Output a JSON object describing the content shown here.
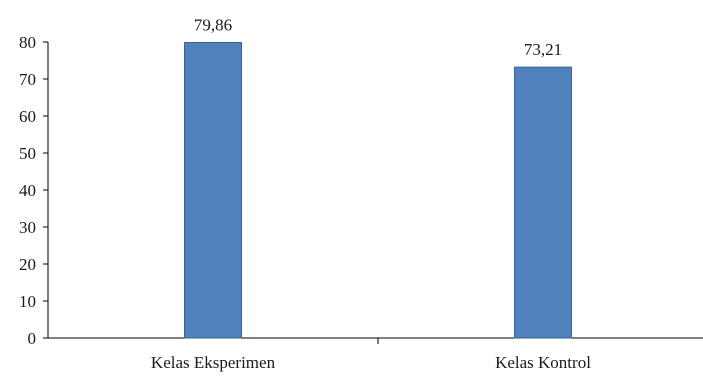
{
  "chart_data": {
    "type": "bar",
    "categories": [
      "Kelas Eksperimen",
      "Kelas Kontrol"
    ],
    "values": [
      79.86,
      73.21
    ],
    "data_labels": [
      "79,86",
      "73,21"
    ],
    "title": "",
    "xlabel": "",
    "ylabel": "",
    "ylim": [
      0,
      80
    ],
    "yticks": [
      "0",
      "10",
      "20",
      "30",
      "40",
      "50",
      "60",
      "70",
      "80"
    ],
    "grid": false,
    "legend": "none",
    "bar_color": "#4F81BD",
    "bar_edge_color": "#3A6391",
    "axis_color": "#000000"
  }
}
